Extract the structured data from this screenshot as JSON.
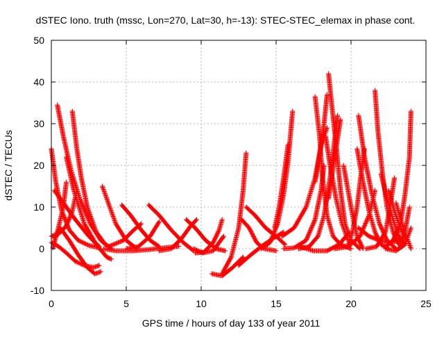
{
  "chart_data": {
    "type": "scatter",
    "title": "dSTEC Iono. truth (mssc, Lon=270, Lat=30, h=-13): STEC-STEC_elemax in phase cont.",
    "xlabel": "GPS time / hours of day 133 of year 2011",
    "ylabel": "dSTEC  / TECUs",
    "xlim": [
      0,
      25
    ],
    "ylim": [
      -10,
      50
    ],
    "x_ticks": [
      0,
      5,
      10,
      15,
      20,
      25
    ],
    "y_ticks": [
      -10,
      0,
      10,
      20,
      30,
      40,
      50
    ],
    "x_tick_labels": [
      "0",
      "5",
      "10",
      "15",
      "20",
      "25"
    ],
    "y_tick_labels": [
      "-10",
      "0",
      "10",
      "20",
      "30",
      "40",
      "50"
    ],
    "grid": true,
    "marker": "+",
    "color": "#ff0000",
    "series": [
      {
        "points": [
          [
            0.0,
            24
          ],
          [
            0.3,
            16
          ],
          [
            0.7,
            9
          ],
          [
            1.2,
            4.5
          ],
          [
            1.8,
            2
          ],
          [
            2.5,
            0.8
          ],
          [
            3.2,
            0.2
          ]
        ]
      },
      {
        "points": [
          [
            0.0,
            3
          ],
          [
            0.5,
            3.6
          ],
          [
            1.0,
            5.5
          ],
          [
            1.4,
            9
          ],
          [
            1.7,
            14
          ]
        ]
      },
      {
        "points": [
          [
            0.4,
            34.5
          ],
          [
            0.8,
            27
          ],
          [
            1.3,
            19
          ],
          [
            1.9,
            12
          ],
          [
            2.6,
            6
          ],
          [
            3.3,
            2
          ],
          [
            4.0,
            0
          ]
        ]
      },
      {
        "points": [
          [
            0.0,
            1.5
          ],
          [
            0.5,
            0.5
          ],
          [
            1.0,
            -1
          ],
          [
            1.6,
            -3
          ],
          [
            2.2,
            -4
          ],
          [
            2.8,
            -4.5
          ],
          [
            3.2,
            -4
          ]
        ]
      },
      {
        "points": [
          [
            0.2,
            2.5
          ],
          [
            0.6,
            5
          ],
          [
            1.2,
            2
          ],
          [
            1.8,
            -1.5
          ],
          [
            2.4,
            -4.5
          ],
          [
            2.9,
            -6
          ],
          [
            3.3,
            -5.5
          ]
        ]
      },
      {
        "points": [
          [
            0.2,
            14
          ],
          [
            0.8,
            11
          ],
          [
            1.6,
            7
          ],
          [
            2.5,
            3
          ],
          [
            3.2,
            0.5
          ]
        ]
      },
      {
        "points": [
          [
            1.4,
            33
          ],
          [
            1.7,
            24
          ],
          [
            2.0,
            17
          ],
          [
            2.4,
            10
          ],
          [
            3.0,
            4
          ],
          [
            3.6,
            1
          ]
        ]
      },
      {
        "points": [
          [
            1.0,
            22
          ],
          [
            1.5,
            14
          ],
          [
            2.2,
            6
          ],
          [
            3.0,
            1
          ],
          [
            3.7,
            -2
          ],
          [
            4.0,
            -2.5
          ]
        ]
      },
      {
        "points": [
          [
            0.1,
            0.2
          ],
          [
            0.4,
            4
          ],
          [
            0.8,
            10
          ],
          [
            1.0,
            16
          ]
        ]
      },
      {
        "points": [
          [
            3.4,
            15
          ],
          [
            3.8,
            11
          ],
          [
            4.3,
            6
          ],
          [
            5.0,
            2
          ],
          [
            5.7,
            0
          ]
        ]
      },
      {
        "points": [
          [
            3.5,
            0
          ],
          [
            4.3,
            -0.5
          ],
          [
            5.5,
            -0.5
          ],
          [
            6.5,
            -0.2
          ],
          [
            7.5,
            0.2
          ],
          [
            8.5,
            0.6
          ]
        ]
      },
      {
        "points": [
          [
            4.7,
            10.5
          ],
          [
            5.3,
            8
          ],
          [
            6.0,
            4.5
          ],
          [
            6.6,
            2
          ],
          [
            7.2,
            0.5
          ]
        ]
      },
      {
        "points": [
          [
            3.8,
            0.5
          ],
          [
            4.8,
            2
          ],
          [
            5.5,
            4.5
          ],
          [
            6.0,
            6
          ]
        ]
      },
      {
        "points": [
          [
            5.0,
            0
          ],
          [
            5.8,
            0.5
          ],
          [
            6.6,
            3
          ],
          [
            7.2,
            6.5
          ]
        ]
      },
      {
        "points": [
          [
            6.5,
            10.5
          ],
          [
            7.2,
            8
          ],
          [
            8.0,
            4.5
          ],
          [
            8.8,
            1.5
          ],
          [
            9.5,
            -0.5
          ]
        ]
      },
      {
        "points": [
          [
            7.2,
            -0.5
          ],
          [
            8.0,
            0
          ],
          [
            8.7,
            2.5
          ],
          [
            9.3,
            5.5
          ],
          [
            9.7,
            7
          ]
        ]
      },
      {
        "points": [
          [
            9.0,
            7
          ],
          [
            9.6,
            5
          ],
          [
            10.3,
            2
          ],
          [
            11.0,
            0
          ],
          [
            11.6,
            -0.5
          ]
        ]
      },
      {
        "points": [
          [
            9.5,
            0
          ],
          [
            10.1,
            -1
          ],
          [
            10.8,
            -0.5
          ],
          [
            11.3,
            2
          ],
          [
            11.5,
            3
          ]
        ]
      },
      {
        "points": [
          [
            9.6,
            -1
          ],
          [
            10.2,
            -0.8
          ],
          [
            10.8,
            1.5
          ],
          [
            11.2,
            4.5
          ],
          [
            11.4,
            7
          ]
        ]
      },
      {
        "points": [
          [
            10.7,
            -6
          ],
          [
            11.4,
            -6.5
          ],
          [
            12.1,
            -4.5
          ],
          [
            12.8,
            -2
          ]
        ]
      },
      {
        "points": [
          [
            11.4,
            -6
          ],
          [
            12.0,
            -2
          ],
          [
            12.5,
            5
          ],
          [
            12.8,
            14
          ],
          [
            13.0,
            23
          ]
        ]
      },
      {
        "points": [
          [
            12.5,
            -4
          ],
          [
            13.3,
            -1.5
          ],
          [
            14.0,
            0.5
          ],
          [
            14.8,
            2.5
          ],
          [
            15.5,
            4
          ]
        ]
      },
      {
        "points": [
          [
            12.7,
            7
          ],
          [
            13.2,
            5
          ],
          [
            13.7,
            1.5
          ],
          [
            14.2,
            0
          ],
          [
            15.0,
            -0.5
          ]
        ]
      },
      {
        "points": [
          [
            13.0,
            10
          ],
          [
            13.6,
            8
          ],
          [
            14.3,
            5
          ],
          [
            15.0,
            3
          ],
          [
            15.6,
            1
          ]
        ]
      },
      {
        "points": [
          [
            14.0,
            0
          ],
          [
            14.6,
            1.5
          ],
          [
            15.1,
            6
          ],
          [
            15.5,
            13
          ],
          [
            15.8,
            21
          ],
          [
            16.1,
            33
          ]
        ]
      },
      {
        "points": [
          [
            14.9,
            5
          ],
          [
            15.2,
            10
          ],
          [
            15.5,
            17
          ],
          [
            15.8,
            25
          ]
        ]
      },
      {
        "points": [
          [
            15.5,
            0
          ],
          [
            16.2,
            0.2
          ],
          [
            17.0,
            2
          ],
          [
            17.6,
            7
          ],
          [
            18.0,
            14
          ],
          [
            18.2,
            20
          ]
        ]
      },
      {
        "points": [
          [
            15.4,
            3
          ],
          [
            16.2,
            5
          ],
          [
            17.0,
            10
          ],
          [
            17.6,
            17
          ],
          [
            18.0,
            25
          ],
          [
            18.4,
            29
          ]
        ]
      },
      {
        "points": [
          [
            16.5,
            0
          ],
          [
            17.2,
            0.5
          ],
          [
            17.8,
            3
          ],
          [
            18.2,
            8
          ],
          [
            18.6,
            17
          ],
          [
            18.9,
            26
          ],
          [
            19.1,
            32
          ]
        ]
      },
      {
        "points": [
          [
            16.6,
            0.5
          ],
          [
            17.5,
            -0.5
          ],
          [
            18.4,
            -0.5
          ],
          [
            19.2,
            1
          ],
          [
            19.9,
            4
          ]
        ]
      },
      {
        "points": [
          [
            17.6,
            36.5
          ],
          [
            17.9,
            27
          ],
          [
            18.1,
            17
          ],
          [
            18.4,
            8
          ],
          [
            18.8,
            3
          ],
          [
            19.3,
            1
          ],
          [
            20.0,
            0
          ]
        ]
      },
      {
        "points": [
          [
            18.5,
            42
          ],
          [
            18.7,
            35
          ],
          [
            19.0,
            25
          ],
          [
            19.3,
            14
          ],
          [
            19.6,
            6
          ],
          [
            20.0,
            2
          ],
          [
            20.6,
            0
          ]
        ]
      },
      {
        "points": [
          [
            18.3,
            27
          ],
          [
            18.6,
            20
          ],
          [
            19.0,
            12
          ],
          [
            19.4,
            6
          ],
          [
            19.8,
            2
          ]
        ]
      },
      {
        "points": [
          [
            18.4,
            37
          ],
          [
            18.2,
            30
          ],
          [
            17.9,
            22
          ],
          [
            17.6,
            16
          ]
        ]
      },
      {
        "points": [
          [
            19.3,
            31
          ],
          [
            19.0,
            24
          ],
          [
            18.7,
            17
          ],
          [
            18.5,
            12
          ]
        ]
      },
      {
        "points": [
          [
            19.5,
            20
          ],
          [
            19.8,
            14
          ],
          [
            20.1,
            8
          ],
          [
            20.4,
            3
          ],
          [
            20.8,
            0
          ]
        ]
      },
      {
        "points": [
          [
            19.8,
            1
          ],
          [
            20.1,
            4
          ],
          [
            20.4,
            10
          ],
          [
            20.6,
            16
          ],
          [
            20.9,
            24
          ]
        ]
      },
      {
        "points": [
          [
            20.4,
            24
          ],
          [
            20.8,
            16
          ],
          [
            21.2,
            9
          ],
          [
            21.6,
            4
          ],
          [
            22.0,
            1
          ],
          [
            22.5,
            0
          ]
        ]
      },
      {
        "points": [
          [
            20.5,
            32
          ],
          [
            20.9,
            22
          ],
          [
            21.4,
            13
          ],
          [
            21.9,
            6
          ],
          [
            22.4,
            2
          ],
          [
            23.0,
            0
          ]
        ]
      },
      {
        "points": [
          [
            21.6,
            38
          ],
          [
            21.8,
            28
          ],
          [
            22.1,
            18
          ],
          [
            22.4,
            10
          ],
          [
            22.8,
            4
          ],
          [
            23.2,
            1
          ]
        ]
      },
      {
        "points": [
          [
            22.0,
            18
          ],
          [
            22.4,
            12
          ],
          [
            22.8,
            7
          ],
          [
            23.2,
            3
          ],
          [
            23.6,
            1
          ]
        ]
      },
      {
        "points": [
          [
            22.5,
            14
          ],
          [
            22.9,
            9
          ],
          [
            23.3,
            5
          ],
          [
            23.7,
            2
          ]
        ]
      },
      {
        "points": [
          [
            21.0,
            0
          ],
          [
            21.7,
            0.5
          ],
          [
            22.3,
            4
          ],
          [
            22.6,
            10
          ],
          [
            22.9,
            17
          ]
        ]
      },
      {
        "points": [
          [
            22.3,
            0.5
          ],
          [
            22.8,
            2
          ],
          [
            23.3,
            6
          ],
          [
            23.6,
            13
          ],
          [
            23.9,
            22
          ],
          [
            24.0,
            33
          ]
        ]
      },
      {
        "points": [
          [
            23.2,
            0
          ],
          [
            23.6,
            4
          ],
          [
            23.9,
            10
          ]
        ]
      },
      {
        "points": [
          [
            22.3,
            0
          ],
          [
            23.0,
            -0.5
          ],
          [
            23.6,
            1
          ],
          [
            24.0,
            5
          ]
        ]
      },
      {
        "points": [
          [
            23.0,
            11
          ],
          [
            23.4,
            6
          ],
          [
            23.8,
            2
          ],
          [
            24.0,
            0
          ]
        ]
      },
      {
        "points": [
          [
            18.9,
            0
          ],
          [
            19.8,
            0.5
          ],
          [
            20.6,
            3
          ],
          [
            21.2,
            8
          ],
          [
            21.6,
            14
          ]
        ]
      },
      {
        "points": [
          [
            20.5,
            5
          ],
          [
            21.2,
            3
          ],
          [
            21.9,
            2
          ],
          [
            22.6,
            1.5
          ],
          [
            23.4,
            2
          ]
        ]
      }
    ]
  }
}
